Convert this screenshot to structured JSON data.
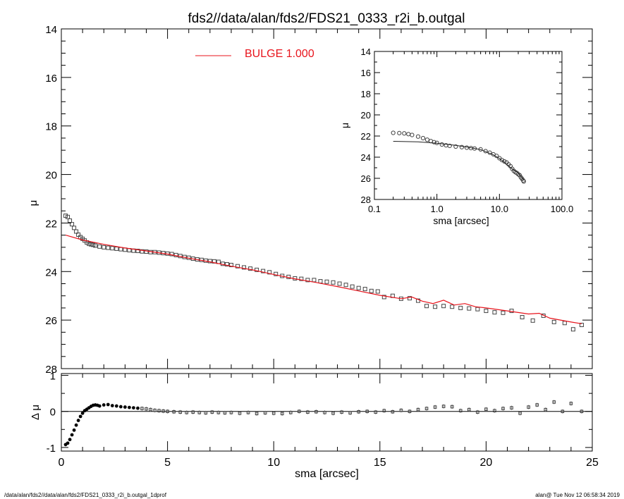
{
  "chart_data": [
    {
      "panel": "main-profile",
      "type": "scatter",
      "title": "fds2//data/alan/fds2/FDS21_0333_r2i_b.outgal",
      "xlabel": "sma [arcsec]",
      "ylabel": "μ",
      "xlim": [
        0,
        25
      ],
      "ylim": [
        28,
        14
      ],
      "y_inverted": true,
      "yticks": [
        "14",
        "16",
        "18",
        "20",
        "22",
        "24",
        "26",
        "28"
      ],
      "legend": {
        "label": "BULGE 1.000",
        "placement": "top-center"
      },
      "series": [
        {
          "name": "BULGE",
          "style": "line",
          "x": [
            0.2,
            1,
            2,
            3,
            4,
            5,
            6,
            7,
            8,
            9,
            10,
            11,
            12,
            13,
            14,
            15,
            16,
            16.5,
            17,
            17.5,
            18,
            18.5,
            19,
            19.5,
            20,
            21,
            22,
            22.5,
            23,
            24,
            24.5
          ],
          "y": [
            22.5,
            22.7,
            22.88,
            23.03,
            23.15,
            23.28,
            23.45,
            23.6,
            23.78,
            23.93,
            24.12,
            24.3,
            24.45,
            24.62,
            24.8,
            24.98,
            25.12,
            25.05,
            25.22,
            25.32,
            25.18,
            25.38,
            25.32,
            25.45,
            25.5,
            25.62,
            25.75,
            25.72,
            25.92,
            26.08,
            26.15
          ]
        },
        {
          "style": "points",
          "x": [
            0.2,
            0.3,
            0.4,
            0.5,
            0.6,
            0.7,
            0.8,
            0.9,
            1,
            1.1,
            1.2,
            1.3,
            1.4,
            1.5,
            1.6,
            1.8,
            2,
            2.2,
            2.4,
            2.6,
            2.8,
            3,
            3.2,
            3.4,
            3.6,
            3.8,
            4,
            4.2,
            4.4,
            4.6,
            4.8,
            5,
            5.2,
            5.4,
            5.6,
            5.8,
            6,
            6.2,
            6.4,
            6.6,
            6.8,
            7,
            7.2,
            7.4,
            7.6,
            7.8,
            8,
            8.3,
            8.6,
            8.9,
            9.2,
            9.5,
            9.8,
            10.1,
            10.4,
            10.7,
            11,
            11.3,
            11.6,
            11.9,
            12.2,
            12.5,
            12.8,
            13.1,
            13.4,
            13.7,
            14,
            14.3,
            14.6,
            14.9,
            15.2,
            15.6,
            16,
            16.4,
            16.8,
            17.2,
            17.6,
            18,
            18.4,
            18.8,
            19.2,
            19.6,
            20,
            20.4,
            20.8,
            21.2,
            21.7,
            22.2,
            22.7,
            23.2,
            23.7,
            24.1,
            24.5
          ],
          "y": [
            21.7,
            21.75,
            21.9,
            22.05,
            22.2,
            22.35,
            22.48,
            22.58,
            22.65,
            22.72,
            22.8,
            22.86,
            22.88,
            22.9,
            22.93,
            22.97,
            23.0,
            23.02,
            23.04,
            23.06,
            23.08,
            23.1,
            23.12,
            23.14,
            23.15,
            23.17,
            23.18,
            23.2,
            23.2,
            23.22,
            23.24,
            23.26,
            23.28,
            23.32,
            23.36,
            23.4,
            23.43,
            23.47,
            23.5,
            23.52,
            23.55,
            23.57,
            23.58,
            23.6,
            23.68,
            23.7,
            23.73,
            23.78,
            23.83,
            23.88,
            23.93,
            23.98,
            24.03,
            24.1,
            24.18,
            24.22,
            24.28,
            24.3,
            24.35,
            24.35,
            24.4,
            24.42,
            24.45,
            24.5,
            24.55,
            24.62,
            24.68,
            24.72,
            24.8,
            24.82,
            25.05,
            25.0,
            25.12,
            25.1,
            25.2,
            25.42,
            25.45,
            25.42,
            25.45,
            25.5,
            25.52,
            25.55,
            25.62,
            25.68,
            25.7,
            25.62,
            25.88,
            26.02,
            25.82,
            26.08,
            26.12,
            26.38,
            26.2
          ]
        }
      ]
    },
    {
      "panel": "inset-log-profile",
      "type": "scatter",
      "xlabel": "sma [arcsec]",
      "ylabel": "μ",
      "x_scale": "log",
      "xlim": [
        0.1,
        100
      ],
      "xticks": [
        "0.1",
        "1.0",
        "10.0",
        "100.0"
      ],
      "ylim": [
        28,
        14
      ],
      "yticks": [
        "14",
        "16",
        "18",
        "20",
        "22",
        "24",
        "26",
        "28"
      ],
      "series": [
        {
          "style": "line",
          "x": [
            0.2,
            0.5,
            1,
            2,
            3,
            5,
            8,
            10,
            15,
            20,
            24.5
          ],
          "y": [
            22.5,
            22.55,
            22.68,
            22.88,
            23.03,
            23.28,
            23.78,
            24.12,
            24.98,
            25.5,
            26.15
          ]
        },
        {
          "style": "points",
          "x": [
            0.2,
            0.25,
            0.3,
            0.35,
            0.4,
            0.5,
            0.6,
            0.7,
            0.8,
            0.9,
            1,
            1.2,
            1.4,
            1.6,
            2,
            2.5,
            3,
            3.5,
            4,
            5,
            6,
            7,
            8,
            9,
            10,
            11,
            12,
            13,
            14,
            15,
            16,
            17,
            18,
            19,
            20,
            21,
            22,
            23,
            24,
            24.5
          ],
          "y": [
            21.7,
            21.72,
            21.75,
            21.82,
            21.9,
            22.05,
            22.2,
            22.35,
            22.48,
            22.58,
            22.65,
            22.8,
            22.88,
            22.93,
            23.0,
            23.05,
            23.1,
            23.14,
            23.18,
            23.26,
            23.43,
            23.57,
            23.73,
            23.88,
            24.1,
            24.28,
            24.4,
            24.5,
            24.68,
            24.85,
            25.1,
            25.3,
            25.42,
            25.5,
            25.62,
            25.7,
            25.9,
            26.05,
            26.2,
            26.3
          ]
        }
      ]
    },
    {
      "panel": "residuals",
      "type": "scatter",
      "xlabel": "sma [arcsec]",
      "ylabel": "Δ μ",
      "xlim": [
        0,
        25
      ],
      "xticks": [
        "0",
        "5",
        "10",
        "15",
        "20",
        "25"
      ],
      "ylim": [
        -1.1,
        1.05
      ],
      "yticks": [
        "1",
        "0",
        "-1"
      ],
      "reference_line": 0,
      "series": [
        {
          "style": "points",
          "x": [
            0.2,
            0.3,
            0.4,
            0.5,
            0.6,
            0.7,
            0.8,
            0.9,
            1,
            1.1,
            1.2,
            1.3,
            1.4,
            1.5,
            1.6,
            1.7,
            1.8,
            2,
            2.2,
            2.4,
            2.6,
            2.8,
            3,
            3.2,
            3.4,
            3.6,
            3.8,
            4,
            4.2,
            4.4,
            4.6,
            4.8,
            5,
            5.3,
            5.6,
            5.9,
            6.2,
            6.5,
            6.8,
            7.1,
            7.4,
            7.7,
            8,
            8.4,
            8.8,
            9.2,
            9.6,
            10,
            10.4,
            10.8,
            11.2,
            11.6,
            12,
            12.4,
            12.8,
            13.2,
            13.6,
            14,
            14.4,
            14.8,
            15.2,
            15.6,
            16,
            16.4,
            16.8,
            17.2,
            17.6,
            18,
            18.4,
            18.8,
            19.2,
            19.6,
            20,
            20.4,
            20.8,
            21.2,
            21.6,
            22,
            22.4,
            22.8,
            23.2,
            23.6,
            24,
            24.5
          ],
          "y": [
            -0.92,
            -0.88,
            -0.78,
            -0.65,
            -0.52,
            -0.38,
            -0.25,
            -0.14,
            -0.05,
            0.02,
            0.06,
            0.1,
            0.14,
            0.17,
            0.18,
            0.17,
            0.15,
            0.18,
            0.19,
            0.16,
            0.15,
            0.13,
            0.12,
            0.11,
            0.1,
            0.09,
            0.08,
            0.07,
            0.05,
            0.03,
            0.02,
            0.01,
            0.0,
            -0.01,
            -0.02,
            -0.03,
            -0.02,
            -0.03,
            -0.04,
            -0.02,
            -0.03,
            -0.04,
            -0.03,
            -0.05,
            -0.03,
            -0.06,
            -0.04,
            -0.05,
            -0.06,
            -0.03,
            0.0,
            -0.02,
            -0.01,
            -0.03,
            -0.05,
            -0.02,
            -0.04,
            -0.01,
            0.0,
            -0.02,
            0.02,
            -0.01,
            0.03,
            0.0,
            0.05,
            0.08,
            0.12,
            0.14,
            0.13,
            0.02,
            0.05,
            -0.02,
            0.06,
            0.02,
            0.08,
            0.1,
            -0.05,
            0.12,
            0.18,
            0.05,
            0.26,
            0.0,
            0.22,
            0.0
          ]
        }
      ]
    }
  ],
  "footer": {
    "left_text": "/data/alan/fds2//data/alan/fds2/FDS21_0333_r2i_b.outgal_1dprof",
    "right_text": "alan@  Tue Nov 12 06:58:34 2019"
  },
  "colors": {
    "model_line": "#e8141c",
    "points": "#444444",
    "axes": "#000000"
  }
}
